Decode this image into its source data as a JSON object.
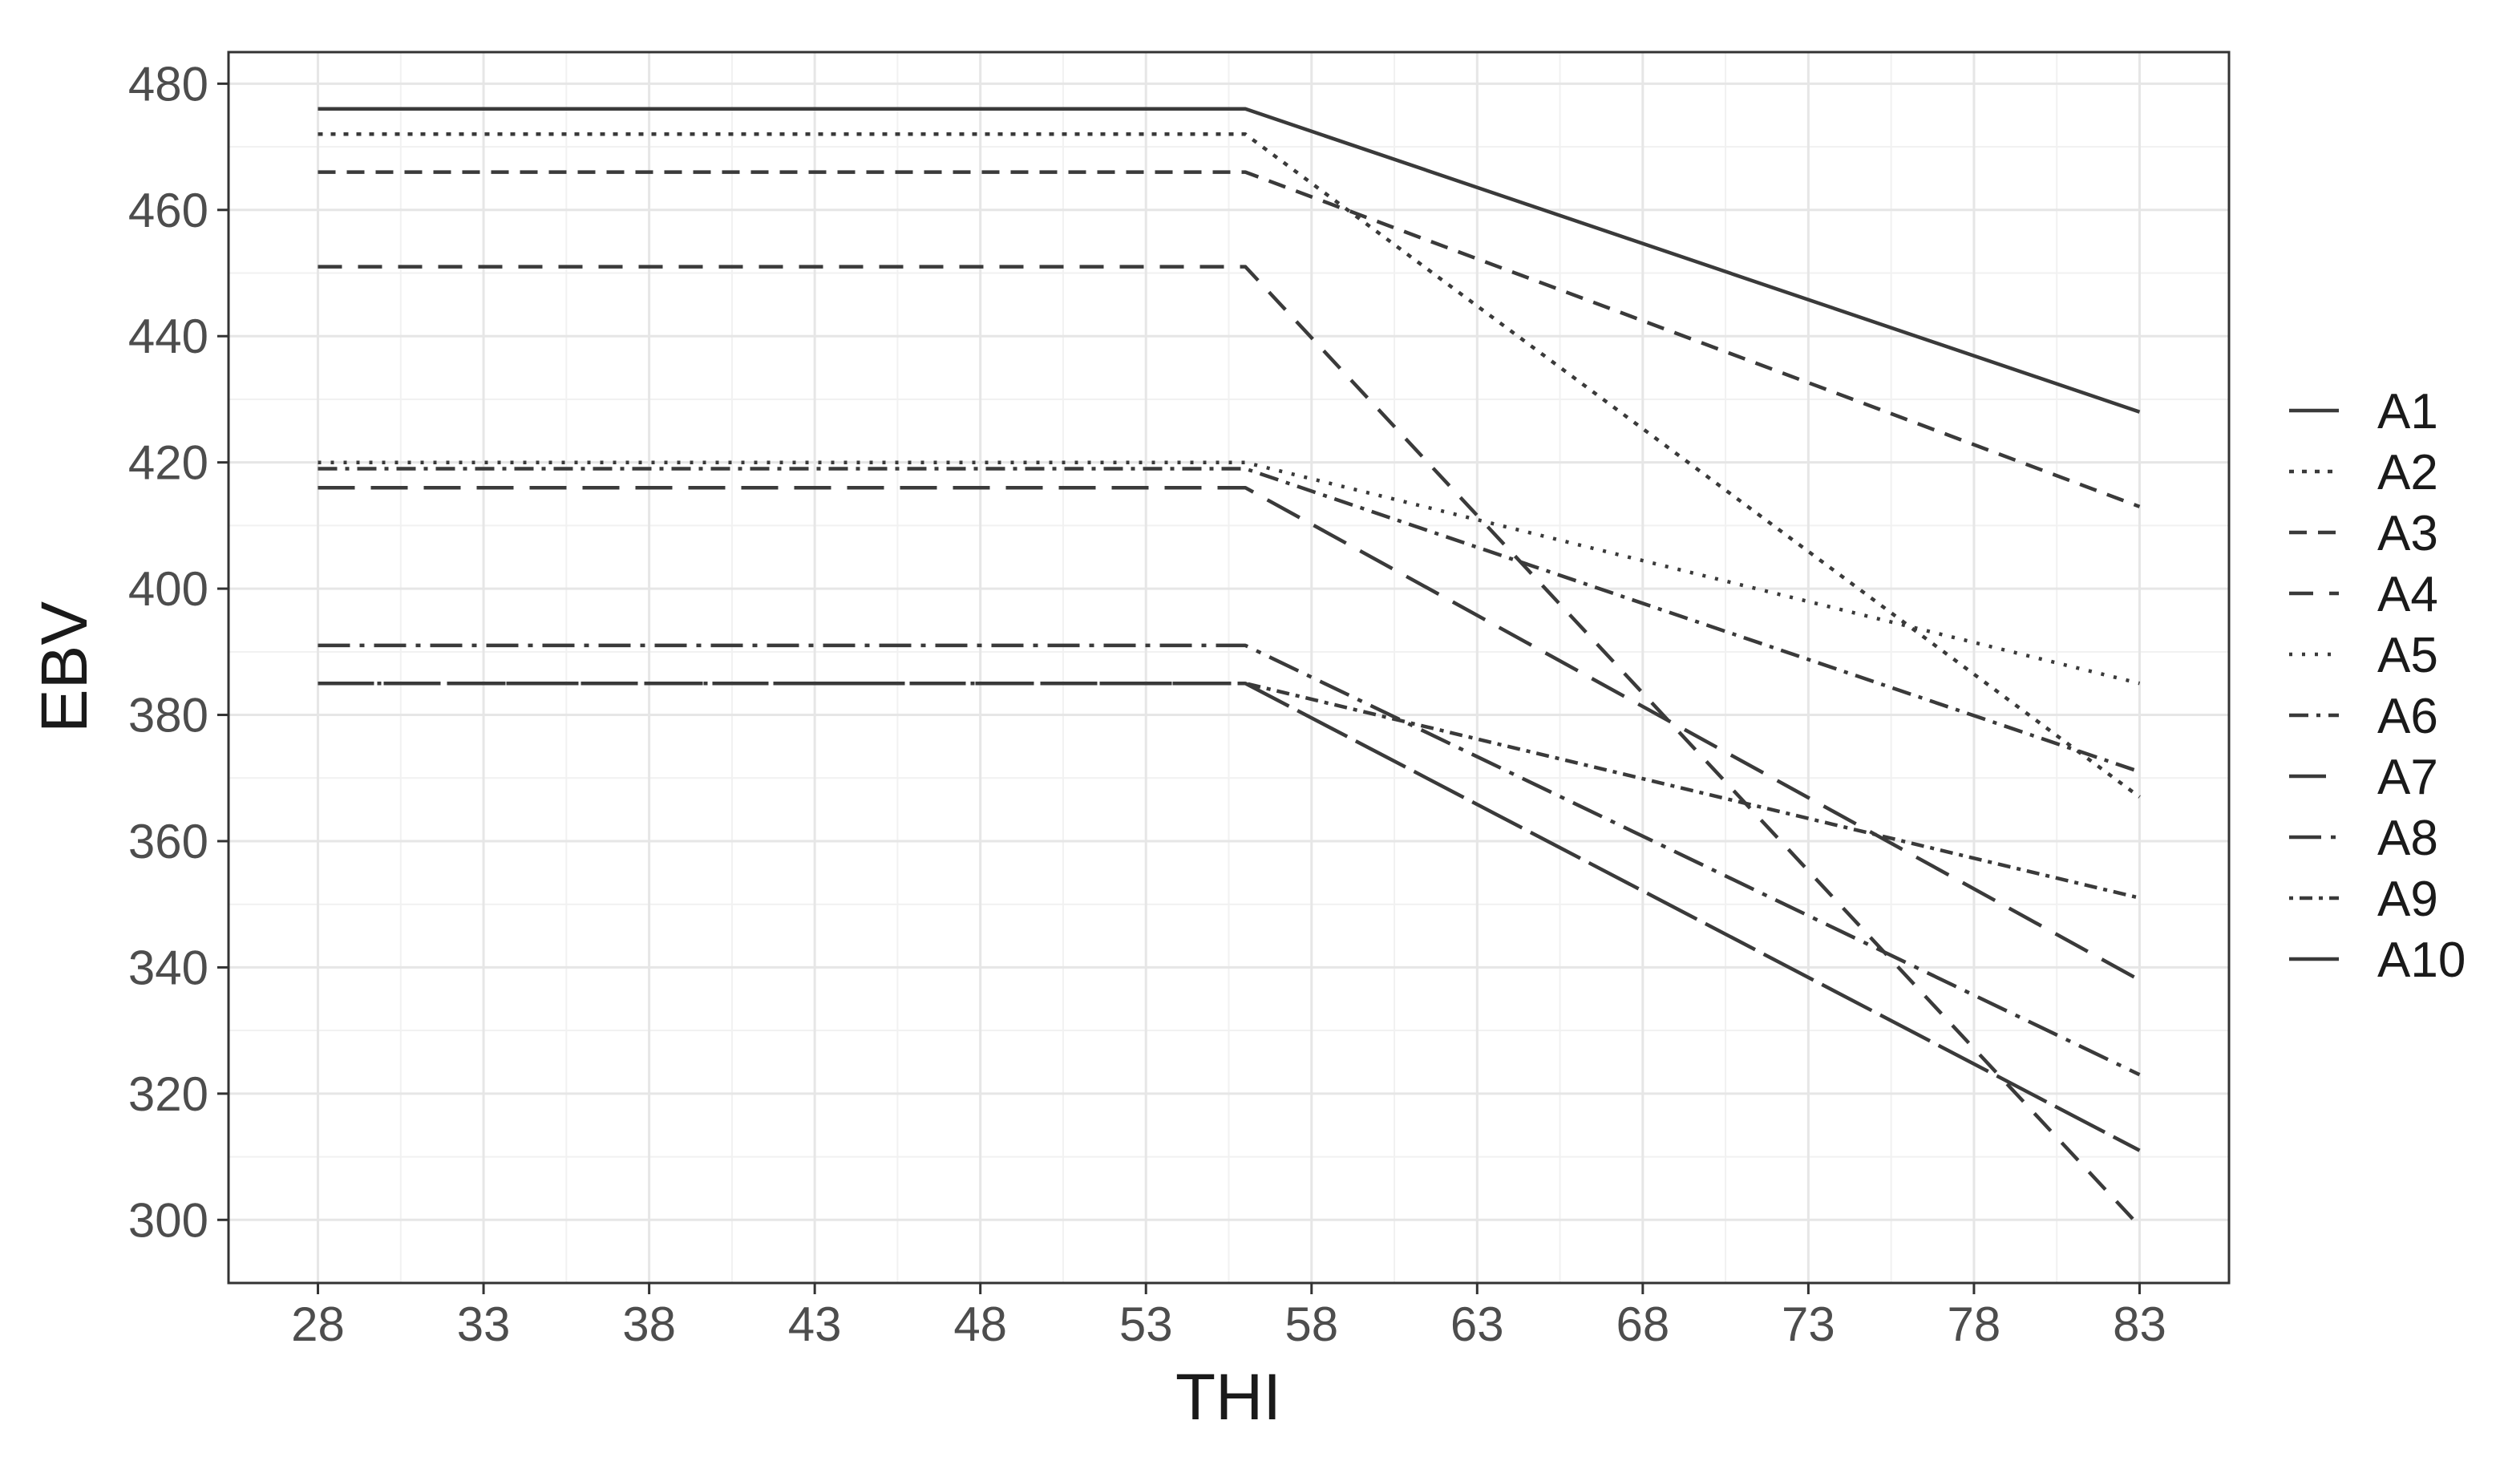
{
  "chart_data": {
    "type": "line",
    "title": "",
    "xlabel": "THI",
    "ylabel": "EBV",
    "xlim": [
      25.3,
      85.7
    ],
    "ylim": [
      290,
      485
    ],
    "x_ticks": [
      28,
      33,
      38,
      43,
      48,
      53,
      58,
      63,
      68,
      73,
      78,
      83
    ],
    "y_ticks": [
      300,
      320,
      340,
      360,
      380,
      400,
      420,
      440,
      460,
      480
    ],
    "grid": true,
    "legend_position": "right",
    "x": [
      28,
      56,
      83
    ],
    "series": [
      {
        "name": "A1",
        "values": [
          476,
          476,
          428
        ],
        "dash": "solid"
      },
      {
        "name": "A2",
        "values": [
          472,
          472,
          367
        ],
        "dash": "dotted-short"
      },
      {
        "name": "A3",
        "values": [
          466,
          466,
          413
        ],
        "dash": "dashed-short"
      },
      {
        "name": "A4",
        "values": [
          451,
          451,
          299
        ],
        "dash": "dashed"
      },
      {
        "name": "A5",
        "values": [
          420,
          420,
          385
        ],
        "dash": "dotted"
      },
      {
        "name": "A6",
        "values": [
          419,
          419,
          371
        ],
        "dash": "dash-dot"
      },
      {
        "name": "A7",
        "values": [
          416,
          416,
          338
        ],
        "dash": "long-dash"
      },
      {
        "name": "A8",
        "values": [
          391,
          391,
          323
        ],
        "dash": "long-dash-dot"
      },
      {
        "name": "A9",
        "values": [
          385,
          385,
          351
        ],
        "dash": "dot-dash-fine"
      },
      {
        "name": "A10",
        "values": [
          385,
          385,
          311
        ],
        "dash": "long-solid-dash"
      }
    ]
  }
}
